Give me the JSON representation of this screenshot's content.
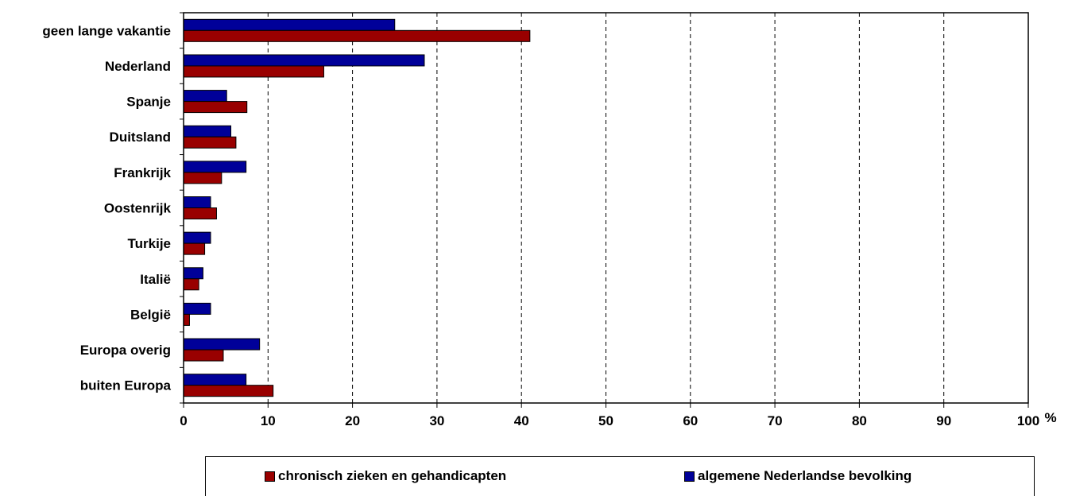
{
  "chart_data": {
    "type": "bar",
    "orientation": "horizontal",
    "categories": [
      "geen lange vakantie",
      "Nederland",
      "Spanje",
      "Duitsland",
      "Frankrijk",
      "Oostenrijk",
      "Turkije",
      "Italië",
      "België",
      "Europa overig",
      "buiten Europa"
    ],
    "series": [
      {
        "name": "algemene Nederlandse bevolking",
        "color": "#000099",
        "values": [
          25,
          28.5,
          5.1,
          5.6,
          7.4,
          3.2,
          3.2,
          2.3,
          3.2,
          9,
          7.4
        ]
      },
      {
        "name": "chronisch zieken en gehandicapten",
        "color": "#990000",
        "values": [
          41,
          16.6,
          7.5,
          6.2,
          4.5,
          3.9,
          2.5,
          1.8,
          0.7,
          4.7,
          10.6
        ]
      }
    ],
    "xlim": [
      0,
      100
    ],
    "xticks": [
      0,
      10,
      20,
      30,
      40,
      50,
      60,
      70,
      80,
      90,
      100
    ],
    "xunit": "%",
    "grid": "vertical dashed",
    "legend_position": "bottom"
  },
  "legend": {
    "items": [
      {
        "label": "chronisch zieken en gehandicapten",
        "color": "#990000"
      },
      {
        "label": "algemene Nederlandse bevolking",
        "color": "#000099"
      }
    ]
  }
}
